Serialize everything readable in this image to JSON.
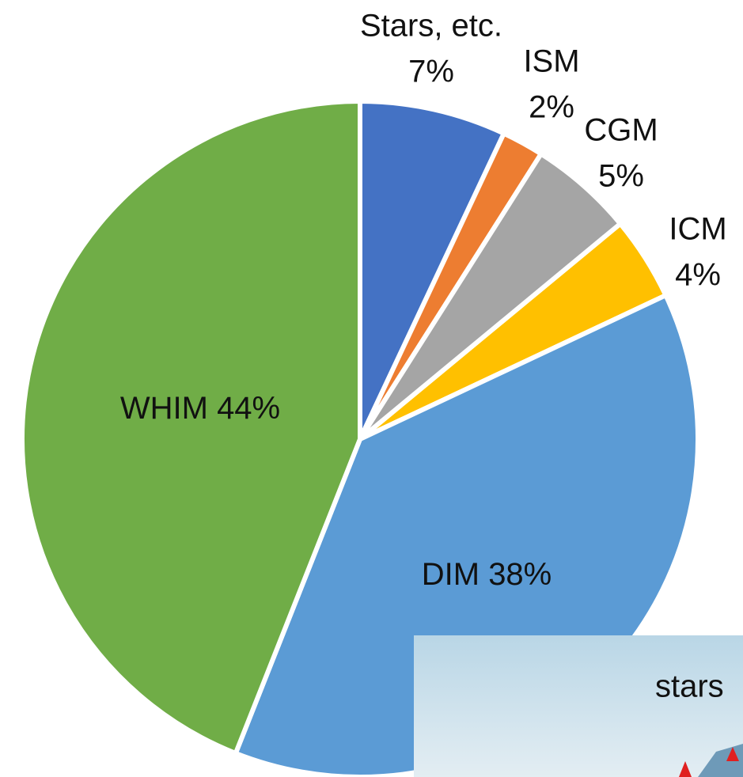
{
  "chart_data": {
    "type": "pie",
    "categories": [
      "Stars, etc.",
      "ISM",
      "CGM",
      "ICM",
      "DIM",
      "WHIM"
    ],
    "values": [
      7,
      2,
      5,
      4,
      38,
      44
    ],
    "value_labels": [
      "7%",
      "2%",
      "5%",
      "4%",
      "38%",
      "44%"
    ],
    "colors": [
      "#4472c4",
      "#ed7d31",
      "#a5a5a5",
      "#ffc000",
      "#5b9bd5",
      "#70ad47"
    ]
  },
  "inset": {
    "label": "stars"
  }
}
